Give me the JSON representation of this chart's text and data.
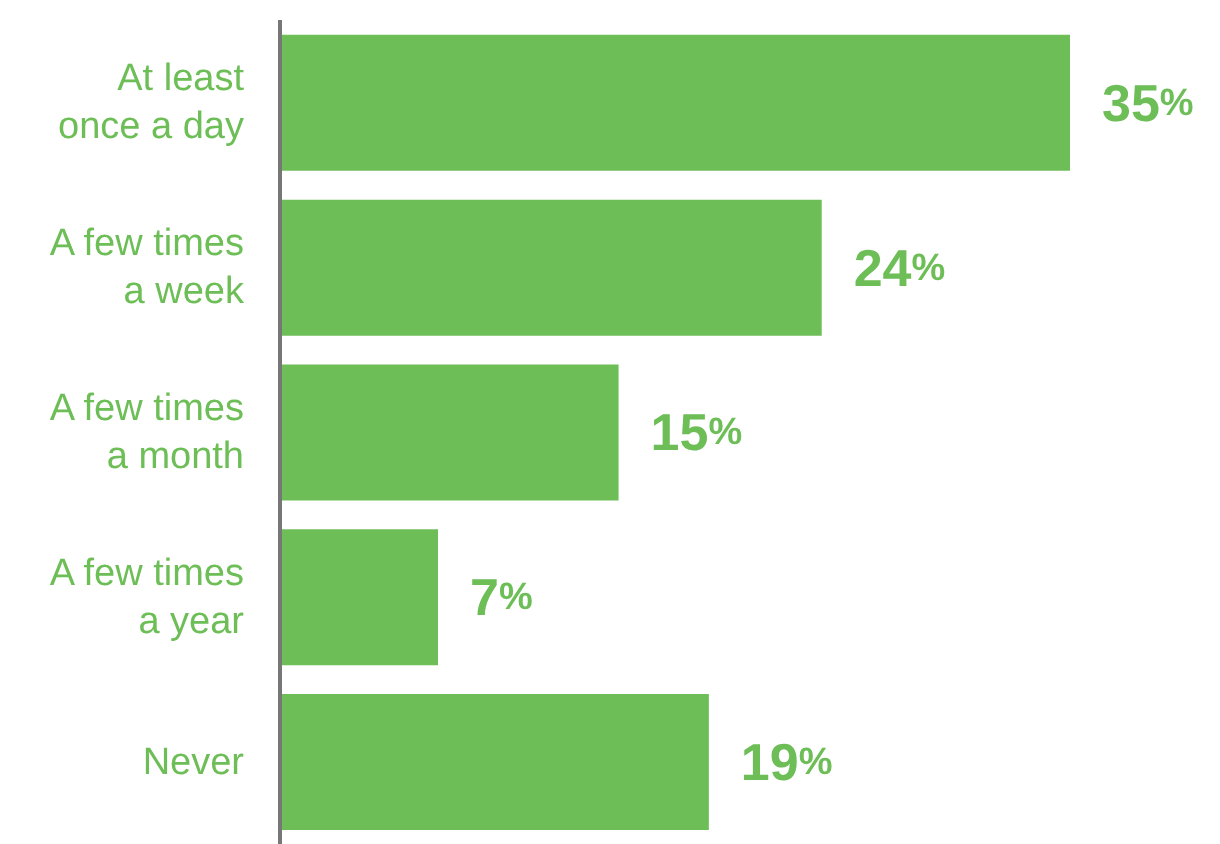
{
  "chart_data": {
    "type": "bar",
    "orientation": "horizontal",
    "categories": [
      "At least once a day",
      "A few times a week",
      "A few times a month",
      "A few times a year",
      "Never"
    ],
    "values": [
      35,
      24,
      15,
      7,
      19
    ],
    "color": "#6dbe57",
    "value_labels": [
      "35%",
      "24%",
      "15%",
      "7%",
      "19%"
    ],
    "tick_labels": "y",
    "grid": false,
    "legend": false
  }
}
